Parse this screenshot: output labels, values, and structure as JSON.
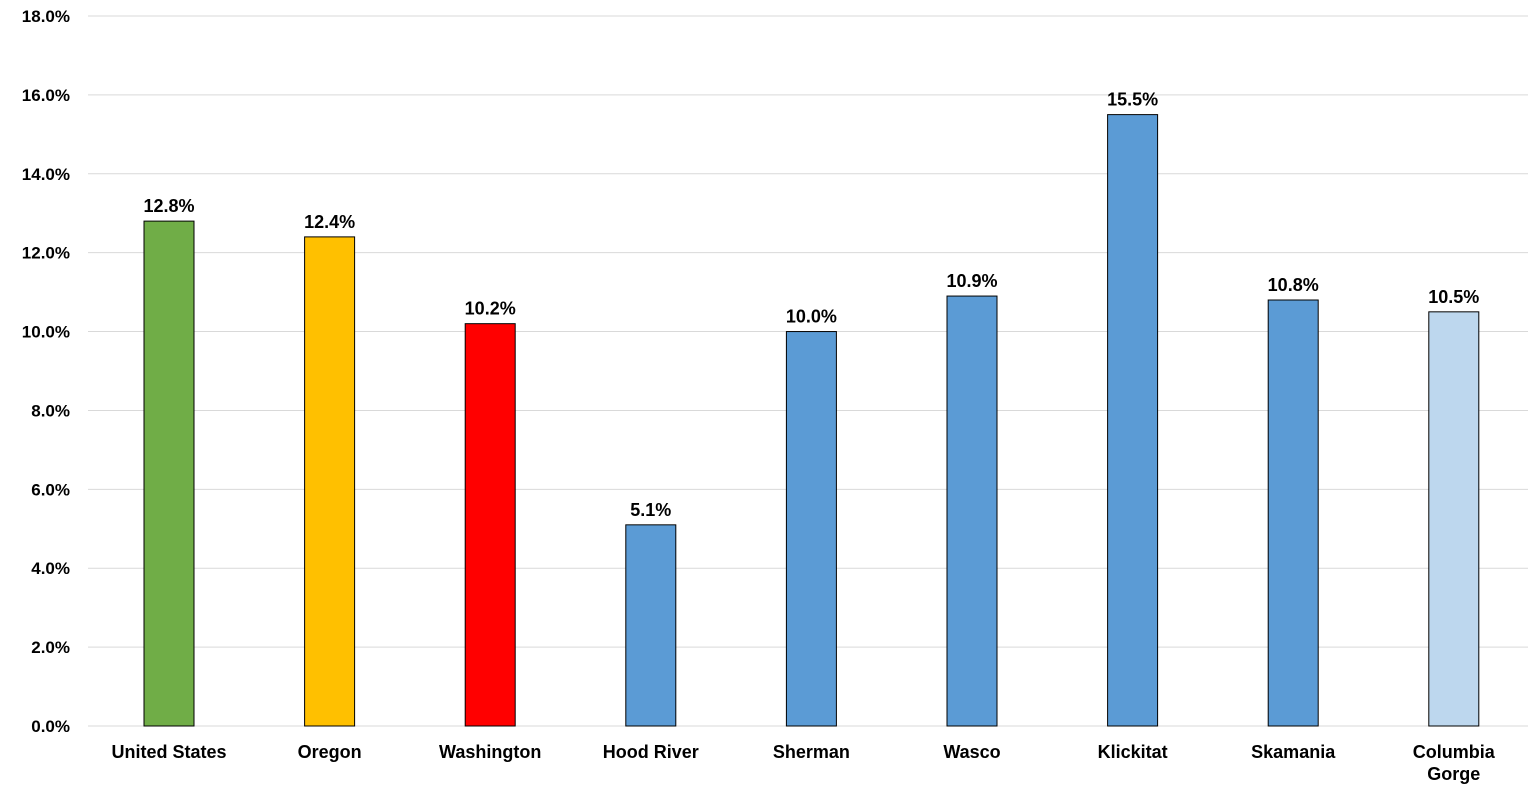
{
  "chart_data": {
    "type": "bar",
    "title": "",
    "xlabel": "",
    "ylabel": "",
    "ylim": [
      0,
      18
    ],
    "y_tick_step": 2,
    "y_tick_format": "percent_one_decimal",
    "grid": "horizontal",
    "legend": "none",
    "categories": [
      "United States",
      "Oregon",
      "Washington",
      "Hood River",
      "Sherman",
      "Wasco",
      "Klickitat",
      "Skamania",
      "Columbia Gorge"
    ],
    "values": [
      12.8,
      12.4,
      10.2,
      5.1,
      10.0,
      10.9,
      15.5,
      10.8,
      10.5
    ],
    "data_labels": [
      "12.8%",
      "12.4%",
      "10.2%",
      "5.1%",
      "10.0%",
      "10.9%",
      "15.5%",
      "10.8%",
      "10.5%"
    ],
    "y_tick_labels": [
      "0.0%",
      "2.0%",
      "4.0%",
      "6.0%",
      "8.0%",
      "10.0%",
      "12.0%",
      "14.0%",
      "16.0%",
      "18.0%"
    ],
    "colors": [
      "#70ad47",
      "#ffc000",
      "#ff0000",
      "#5b9bd5",
      "#5b9bd5",
      "#5b9bd5",
      "#5b9bd5",
      "#5b9bd5",
      "#bdd7ee"
    ]
  }
}
